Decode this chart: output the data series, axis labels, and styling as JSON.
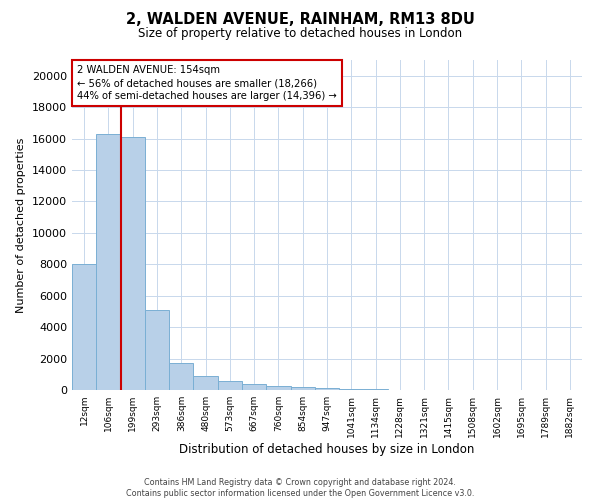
{
  "title_line1": "2, WALDEN AVENUE, RAINHAM, RM13 8DU",
  "title_line2": "Size of property relative to detached houses in London",
  "xlabel": "Distribution of detached houses by size in London",
  "ylabel": "Number of detached properties",
  "footnote": "Contains HM Land Registry data © Crown copyright and database right 2024.\nContains public sector information licensed under the Open Government Licence v3.0.",
  "bin_labels": [
    "12sqm",
    "106sqm",
    "199sqm",
    "293sqm",
    "386sqm",
    "480sqm",
    "573sqm",
    "667sqm",
    "760sqm",
    "854sqm",
    "947sqm",
    "1041sqm",
    "1134sqm",
    "1228sqm",
    "1321sqm",
    "1415sqm",
    "1508sqm",
    "1602sqm",
    "1695sqm",
    "1789sqm",
    "1882sqm"
  ],
  "bar_heights": [
    8050,
    16266,
    16100,
    5100,
    1700,
    900,
    600,
    400,
    280,
    170,
    100,
    65,
    40,
    25,
    15,
    10,
    7,
    5,
    3,
    2,
    1
  ],
  "bar_color": "#b8d0e8",
  "bar_edge_color": "#7aafd4",
  "property_size_label": "2 WALDEN AVENUE: 154sqm",
  "pct_smaller": 56,
  "count_smaller": 18266,
  "pct_larger": 44,
  "count_larger": 14396,
  "annotation_box_color": "#ffffff",
  "annotation_box_edge": "#cc0000",
  "vline_color": "#cc0000",
  "ylim": [
    0,
    21000
  ],
  "yticks": [
    0,
    2000,
    4000,
    6000,
    8000,
    10000,
    12000,
    14000,
    16000,
    18000,
    20000
  ],
  "grid_color": "#c8d8ec",
  "background_color": "#ffffff",
  "figsize": [
    6.0,
    5.0
  ],
  "dpi": 100
}
